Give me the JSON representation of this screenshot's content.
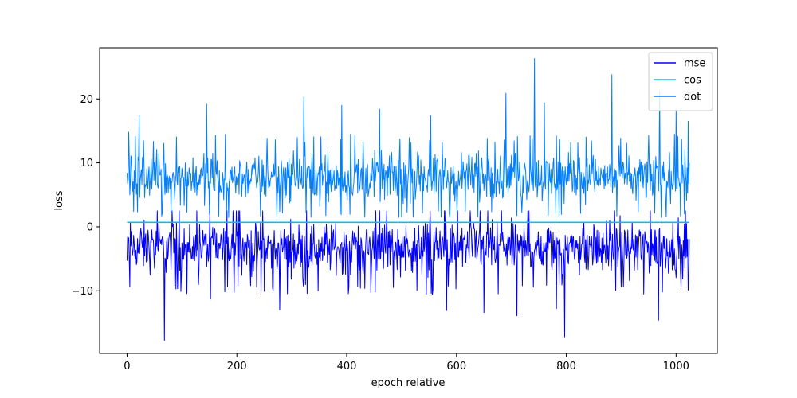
{
  "chart_data": {
    "type": "line",
    "title": "",
    "xlabel": "epoch relative",
    "ylabel": "loss",
    "xlim": [
      -50,
      1075
    ],
    "ylim": [
      -19.8,
      28.0
    ],
    "xticks": [
      0,
      200,
      400,
      600,
      800,
      1000
    ],
    "yticks": [
      -10,
      0,
      10,
      20
    ],
    "legend_position": "top-right",
    "grid": false,
    "n_points": 1025,
    "series": [
      {
        "name": "mse",
        "color": "#0000ff",
        "baseline": -2.5,
        "band": [
          -9,
          2.5
        ],
        "max": 2.5,
        "min": -17.8,
        "spikes": [
          {
            "x": 0,
            "y": -5.3
          },
          {
            "x": 5,
            "y": -9.4
          },
          {
            "x": 68,
            "y": -17.8
          },
          {
            "x": 152,
            "y": -11.3
          },
          {
            "x": 278,
            "y": -13.0
          },
          {
            "x": 348,
            "y": -10.0
          },
          {
            "x": 582,
            "y": -13.1
          },
          {
            "x": 650,
            "y": -13.4
          },
          {
            "x": 710,
            "y": -13.9
          },
          {
            "x": 782,
            "y": -12.8
          },
          {
            "x": 797,
            "y": -17.2
          },
          {
            "x": 968,
            "y": -14.6
          },
          {
            "x": 1023,
            "y": -8.7
          }
        ]
      },
      {
        "name": "cos",
        "color": "#00bfff",
        "baseline": 0.7,
        "band": [
          0.7,
          0.7
        ],
        "max": 0.7,
        "min": 0.7,
        "spikes": []
      },
      {
        "name": "dot",
        "color": "#0080ff",
        "baseline": 7.0,
        "band": [
          2.5,
          13.0
        ],
        "max": 26.3,
        "min": -2.5,
        "spikes": [
          {
            "x": 3,
            "y": 14.8
          },
          {
            "x": 22,
            "y": 17.4
          },
          {
            "x": 145,
            "y": 19.2
          },
          {
            "x": 322,
            "y": 20.3
          },
          {
            "x": 391,
            "y": 19.0
          },
          {
            "x": 460,
            "y": 18.4
          },
          {
            "x": 553,
            "y": 17.4
          },
          {
            "x": 690,
            "y": 20.9
          },
          {
            "x": 742,
            "y": 26.3
          },
          {
            "x": 760,
            "y": 19.4
          },
          {
            "x": 883,
            "y": 23.8
          },
          {
            "x": 970,
            "y": 21.3
          },
          {
            "x": 1000,
            "y": 18.4
          },
          {
            "x": 1022,
            "y": 16.5
          }
        ]
      }
    ]
  }
}
